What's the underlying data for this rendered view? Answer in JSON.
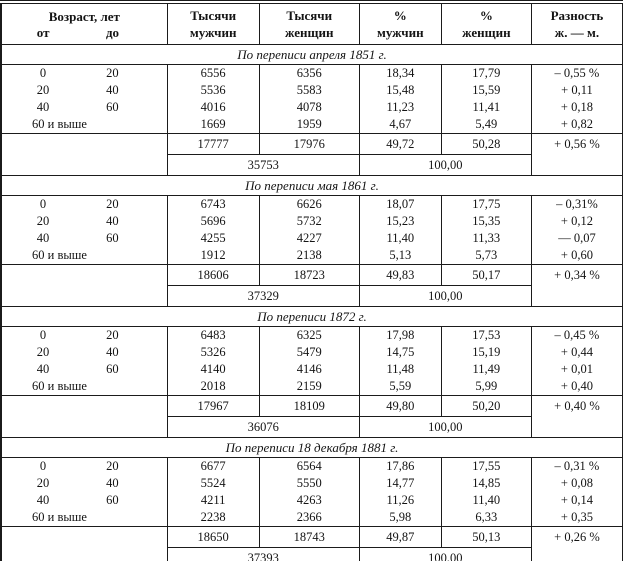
{
  "colors": {
    "border": "#1b1b1b",
    "text": "#141414",
    "background": "#ffffff"
  },
  "table": {
    "header": {
      "age_title": "Возраст, лет",
      "age_from": "от",
      "age_to": "до",
      "cols": [
        {
          "line1": "Тысячи",
          "line2": "мужчин"
        },
        {
          "line1": "Тысячи",
          "line2": "женщин"
        },
        {
          "line1": "%",
          "line2": "мужчин"
        },
        {
          "line1": "%",
          "line2": "женщин"
        },
        {
          "line1": "Разность",
          "line2": "ж. — м."
        }
      ]
    },
    "sections": [
      {
        "title": "По переписи апреля 1851 г.",
        "rows": [
          {
            "from": "0",
            "to": "20",
            "men": "6556",
            "women": "6356",
            "pct_men": "18,34",
            "pct_women": "17,79",
            "diff": "– 0,55 %"
          },
          {
            "from": "20",
            "to": "40",
            "men": "5536",
            "women": "5583",
            "pct_men": "15,48",
            "pct_women": "15,59",
            "diff": "+ 0,11"
          },
          {
            "from": "40",
            "to": "60",
            "men": "4016",
            "women": "4078",
            "pct_men": "11,23",
            "pct_women": "11,41",
            "diff": "+ 0,18"
          },
          {
            "from": "60 и выше",
            "to": "",
            "men": "1669",
            "women": "1959",
            "pct_men": "4,67",
            "pct_women": "5,49",
            "diff": "+ 0,82"
          }
        ],
        "subtotal": {
          "men": "17777",
          "women": "17976",
          "pct_men": "49,72",
          "pct_women": "50,28",
          "diff": "+ 0,56 %"
        },
        "total": {
          "all": "35753",
          "pct": "100,00"
        }
      },
      {
        "title": "По переписи мая 1861 г.",
        "rows": [
          {
            "from": "0",
            "to": "20",
            "men": "6743",
            "women": "6626",
            "pct_men": "18,07",
            "pct_women": "17,75",
            "diff": "– 0,31%"
          },
          {
            "from": "20",
            "to": "40",
            "men": "5696",
            "women": "5732",
            "pct_men": "15,23",
            "pct_women": "15,35",
            "diff": "+ 0,12"
          },
          {
            "from": "40",
            "to": "60",
            "men": "4255",
            "women": "4227",
            "pct_men": "11,40",
            "pct_women": "11,33",
            "diff": "— 0,07"
          },
          {
            "from": "60 и выше",
            "to": "",
            "men": "1912",
            "women": "2138",
            "pct_men": "5,13",
            "pct_women": "5,73",
            "diff": "+ 0,60"
          }
        ],
        "subtotal": {
          "men": "18606",
          "women": "18723",
          "pct_men": "49,83",
          "pct_women": "50,17",
          "diff": "+ 0,34 %"
        },
        "total": {
          "all": "37329",
          "pct": "100,00"
        }
      },
      {
        "title": "По переписи 1872 г.",
        "rows": [
          {
            "from": "0",
            "to": "20",
            "men": "6483",
            "women": "6325",
            "pct_men": "17,98",
            "pct_women": "17,53",
            "diff": "– 0,45 %"
          },
          {
            "from": "20",
            "to": "40",
            "men": "5326",
            "women": "5479",
            "pct_men": "14,75",
            "pct_women": "15,19",
            "diff": "+ 0,44"
          },
          {
            "from": "40",
            "to": "60",
            "men": "4140",
            "women": "4146",
            "pct_men": "11,48",
            "pct_women": "11,49",
            "diff": "+ 0,01"
          },
          {
            "from": "60 и выше",
            "to": "",
            "men": "2018",
            "women": "2159",
            "pct_men": "5,59",
            "pct_women": "5,99",
            "diff": "+ 0,40"
          }
        ],
        "subtotal": {
          "men": "17967",
          "women": "18109",
          "pct_men": "49,80",
          "pct_women": "50,20",
          "diff": "+ 0,40 %"
        },
        "total": {
          "all": "36076",
          "pct": "100,00"
        }
      },
      {
        "title": "По переписи 18 декабря 1881 г.",
        "rows": [
          {
            "from": "0",
            "to": "20",
            "men": "6677",
            "women": "6564",
            "pct_men": "17,86",
            "pct_women": "17,55",
            "diff": "– 0,31 %"
          },
          {
            "from": "20",
            "to": "40",
            "men": "5524",
            "women": "5550",
            "pct_men": "14,77",
            "pct_women": "14,85",
            "diff": "+ 0,08"
          },
          {
            "from": "40",
            "to": "60",
            "men": "4211",
            "women": "4263",
            "pct_men": "11,26",
            "pct_women": "11,40",
            "diff": "+ 0,14"
          },
          {
            "from": "60 и выше",
            "to": "",
            "men": "2238",
            "women": "2366",
            "pct_men": "5,98",
            "pct_women": "6,33",
            "diff": "+ 0,35"
          }
        ],
        "subtotal": {
          "men": "18650",
          "women": "18743",
          "pct_men": "49,87",
          "pct_women": "50,13",
          "diff": "+ 0,26 %"
        },
        "total": {
          "all": "37393",
          "pct": "100,00"
        }
      }
    ]
  }
}
